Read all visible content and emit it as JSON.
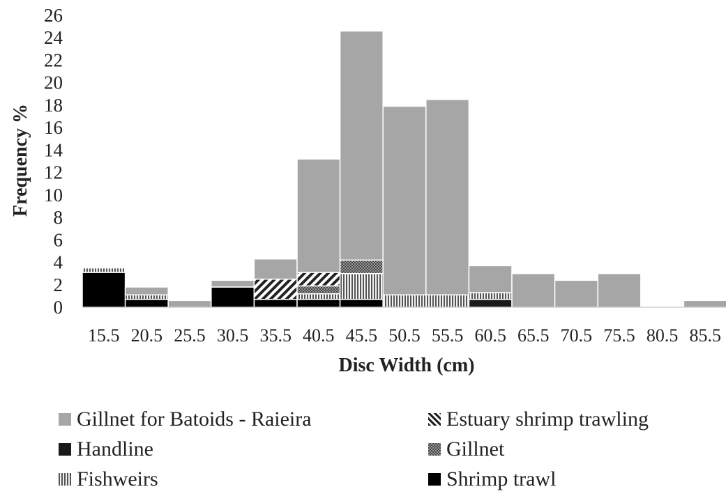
{
  "chart_data": {
    "type": "bar",
    "stacked": true,
    "categories": [
      "15.5",
      "20.5",
      "25.5",
      "30.5",
      "35.5",
      "40.5",
      "45.5",
      "50.5",
      "55.5",
      "60.5",
      "65.5",
      "70.5",
      "75.5",
      "80.5",
      "85.5"
    ],
    "series": [
      {
        "name": "Handline",
        "color": "#1a1a1a",
        "pattern": "solid-dark",
        "values": [
          0,
          0,
          0,
          0,
          0,
          0,
          0,
          0,
          0,
          0.7,
          0,
          0,
          0,
          0,
          0
        ]
      },
      {
        "name": "Shrimp trawl",
        "color": "#000000",
        "pattern": "solid-black",
        "values": [
          3.1,
          0.7,
          0,
          1.8,
          0.7,
          0.7,
          0.7,
          0,
          0,
          0,
          0,
          0,
          0,
          0,
          0
        ]
      },
      {
        "name": "Fishweirs",
        "color": "#888888",
        "pattern": "vertical-lines",
        "values": [
          0.4,
          0.4,
          0,
          0,
          0,
          0.5,
          2.3,
          1.1,
          1.1,
          0.6,
          0,
          0,
          0,
          0,
          0
        ]
      },
      {
        "name": "Gillnet",
        "color": "#777777",
        "pattern": "dots",
        "values": [
          0,
          0,
          0,
          0,
          0,
          0.7,
          1.2,
          0,
          0,
          0,
          0,
          0,
          0,
          0,
          0
        ]
      },
      {
        "name": "Estuary shrimp trawling",
        "color": "#555555",
        "pattern": "diagonal",
        "values": [
          0,
          0,
          0,
          0,
          1.8,
          1.2,
          0,
          0,
          0,
          0,
          0,
          0,
          0,
          0,
          0
        ]
      },
      {
        "name": "Gillnet for Batoids - Raieira",
        "color": "#a6a6a6",
        "pattern": "solid-gray",
        "values": [
          0,
          0.7,
          0.6,
          0.6,
          1.8,
          10.1,
          20.4,
          16.8,
          17.4,
          2.4,
          3.0,
          2.4,
          3.0,
          0,
          0.6
        ]
      }
    ],
    "title": "",
    "xlabel": "Disc Width (cm)",
    "ylabel": "Frequency %",
    "ylim": [
      0,
      26
    ],
    "yticks": [
      "0",
      "2",
      "4",
      "6",
      "8",
      "10",
      "12",
      "14",
      "16",
      "18",
      "20",
      "22",
      "24",
      "26"
    ],
    "grid": false,
    "legend_position": "bottom",
    "legend_order": [
      "Gillnet for Batoids - Raieira",
      "Estuary shrimp trawling",
      "Handline",
      "Gillnet",
      "Fishweirs",
      "Shrimp trawl"
    ]
  }
}
